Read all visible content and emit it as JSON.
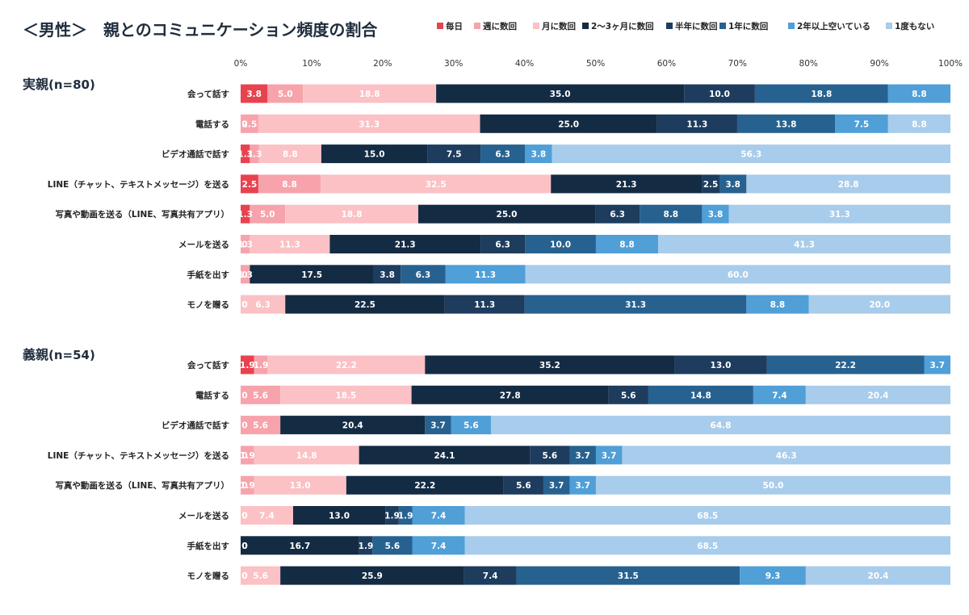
{
  "chart_data": {
    "type": "bar",
    "title": "＜男性＞　親とのコミュニケーション頻度の割合",
    "orientation": "horizontal-stacked-100",
    "xlim": [
      0,
      100
    ],
    "x_ticks": [
      "0%",
      "10%",
      "20%",
      "30%",
      "40%",
      "50%",
      "60%",
      "70%",
      "80%",
      "90%",
      "100%"
    ],
    "grid": false,
    "legend_position": "top-right",
    "series": [
      {
        "name": "毎日",
        "color": "#e8424f"
      },
      {
        "name": "週に数回",
        "color": "#f7a3ab"
      },
      {
        "name": "月に数回",
        "color": "#fbc1c5"
      },
      {
        "name": "2〜3ヶ月に数回",
        "color": "#142b44"
      },
      {
        "name": "半年に数回",
        "color": "#1d3c5e"
      },
      {
        "name": "1年に数回",
        "color": "#27618f"
      },
      {
        "name": "2年以上空いている",
        "color": "#509fd7"
      },
      {
        "name": "1度もない",
        "color": "#a8cceb"
      }
    ],
    "groups": [
      {
        "label": "実親",
        "n_label": "(n=80)",
        "categories": [
          "会って話す",
          "電話する",
          "ビデオ通話で話す",
          "LINE（チャット、テキストメッセージ）を送る",
          "写真や動画を送る（LINE、写真共有アプリ）",
          "メールを送る",
          "手紙を出す",
          "モノを贈る"
        ],
        "values": [
          [
            3.8,
            5.0,
            18.8,
            35.0,
            10.0,
            18.8,
            8.8,
            0.0
          ],
          [
            0.0,
            2.5,
            31.3,
            25.0,
            11.3,
            13.8,
            7.5,
            8.8
          ],
          [
            1.3,
            1.3,
            8.8,
            15.0,
            7.5,
            6.3,
            3.8,
            56.3
          ],
          [
            2.5,
            8.8,
            32.5,
            21.3,
            2.5,
            3.8,
            0.0,
            28.8
          ],
          [
            1.3,
            5.0,
            18.8,
            25.0,
            6.3,
            8.8,
            3.8,
            31.3
          ],
          [
            0.0,
            1.3,
            11.3,
            21.3,
            6.3,
            10.0,
            8.8,
            41.3
          ],
          [
            0.0,
            1.3,
            0.0,
            17.5,
            3.8,
            6.3,
            11.3,
            60.0
          ],
          [
            0.0,
            0.0,
            6.3,
            22.5,
            11.3,
            31.3,
            8.8,
            20.0
          ]
        ]
      },
      {
        "label": "義親",
        "n_label": "(n=54)",
        "categories": [
          "会って話す",
          "電話する",
          "ビデオ通話で話す",
          "LINE（チャット、テキストメッセージ）を送る",
          "写真や動画を送る（LINE、写真共有アプリ）",
          "メールを送る",
          "手紙を出す",
          "モノを贈る"
        ],
        "values": [
          [
            1.9,
            1.9,
            22.2,
            35.2,
            13.0,
            22.2,
            3.7,
            0.0
          ],
          [
            0.0,
            5.6,
            18.5,
            27.8,
            5.6,
            14.8,
            7.4,
            20.4
          ],
          [
            0.0,
            5.6,
            0.0,
            20.4,
            0.0,
            3.7,
            5.6,
            64.8
          ],
          [
            0.0,
            1.9,
            14.8,
            24.1,
            5.6,
            3.7,
            3.7,
            46.3
          ],
          [
            0.0,
            1.9,
            13.0,
            22.2,
            5.6,
            3.7,
            3.7,
            50.0
          ],
          [
            0.0,
            0.0,
            7.4,
            13.0,
            1.9,
            1.9,
            7.4,
            68.5
          ],
          [
            0.0,
            0.0,
            0.0,
            16.7,
            1.9,
            5.6,
            7.4,
            68.5
          ],
          [
            0.0,
            0.0,
            5.6,
            25.9,
            7.4,
            31.5,
            9.3,
            20.4
          ]
        ]
      }
    ]
  }
}
